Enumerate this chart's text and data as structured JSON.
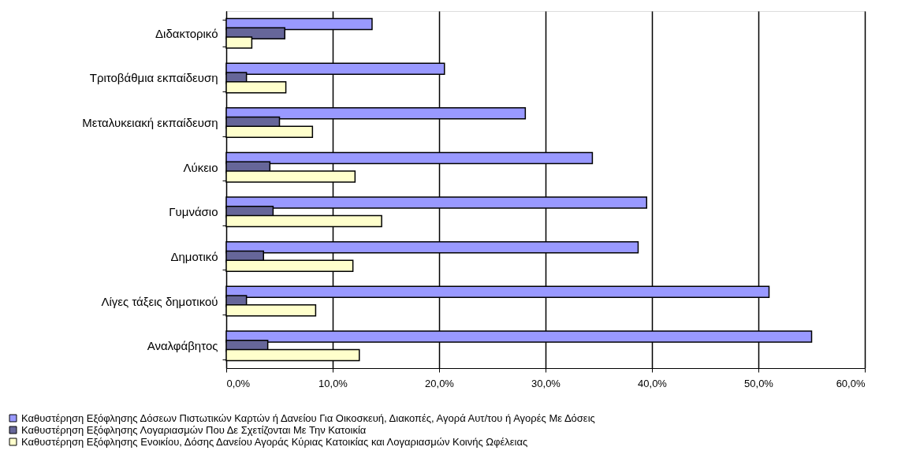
{
  "chart_data": {
    "type": "bar",
    "orientation": "horizontal",
    "categories": [
      "Διδακτορικό",
      "Τριτοβάθμια εκπαίδευση",
      "Μεταλυκειακή εκπαίδευση",
      "Λύκειο",
      "Γυμνάσιο",
      "Δημοτικό",
      "Λίγες τάξεις δημοτικού",
      "Αναλφάβητος"
    ],
    "series": [
      {
        "name": "Καθυστέρηση Εξόφλησης Δόσεων Πιστωτικών Καρτών ή Δανείου Για Οικοσκευή, Διακοπές, Αγορά Αυτ/του ή Αγορές Με Δόσεις",
        "color": "#9999ff",
        "values": [
          13.7,
          20.5,
          28.1,
          34.4,
          39.5,
          38.7,
          51.0,
          55.0
        ]
      },
      {
        "name": "Καθυστέρηση Εξόφλησης Λογαριασμών Που Δε Σχετίζονται Με Την Κατοικία",
        "color": "#666699",
        "values": [
          5.5,
          1.9,
          5.0,
          4.1,
          4.4,
          3.5,
          1.9,
          3.9
        ]
      },
      {
        "name": "Καθυστέρηση Εξόφλησης Ενοικίου, Δόσης Δανείου Αγοράς Κύριας Κατοικίας και Λογαριασμών Κοινής Ωφέλειας",
        "color": "#ffffcc",
        "values": [
          2.4,
          5.6,
          8.1,
          12.1,
          14.6,
          11.9,
          8.4,
          12.5
        ]
      }
    ],
    "xlim": [
      0,
      60
    ],
    "xticks": [
      {
        "value": 0,
        "label": "0,0%"
      },
      {
        "value": 10,
        "label": "10,0%"
      },
      {
        "value": 20,
        "label": "20,0%"
      },
      {
        "value": 30,
        "label": "30,0%"
      },
      {
        "value": 40,
        "label": "40,0%"
      },
      {
        "value": 50,
        "label": "50,0%"
      },
      {
        "value": 60,
        "label": "60,0%"
      }
    ],
    "grid": "x",
    "legend": "bottom"
  }
}
